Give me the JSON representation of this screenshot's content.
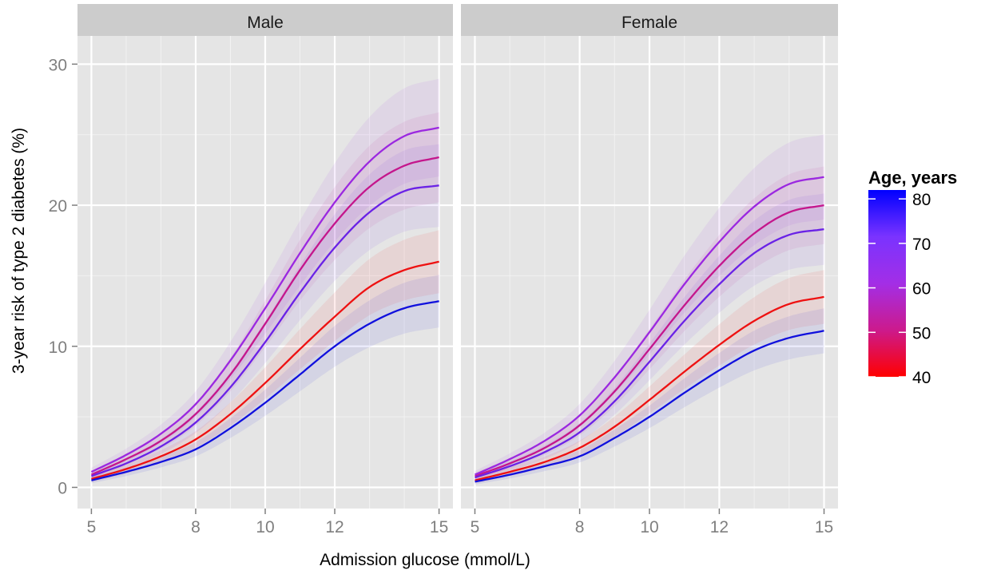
{
  "chart_data": {
    "type": "line",
    "xlabel": "Admission glucose (mmol/L)",
    "ylabel": "3-year risk of type 2 diabetes (%)",
    "xlim": [
      4.6,
      15.4
    ],
    "ylim": [
      -1.5,
      32
    ],
    "x_ticks": [
      5,
      8,
      10,
      12,
      15
    ],
    "x_ticks_labels": [
      "5",
      "8",
      "10",
      "12",
      "15"
    ],
    "x_minor_ticks": [
      6,
      7,
      9,
      11,
      13,
      14
    ],
    "y_ticks": [
      0,
      10,
      20,
      30
    ],
    "y_ticks_labels": [
      "0",
      "10",
      "20",
      "30"
    ],
    "y_minor_ticks": [
      5,
      15,
      25
    ],
    "grid": true,
    "x": [
      5,
      6,
      7,
      8,
      9,
      10,
      11,
      12,
      13,
      14,
      15
    ],
    "panels": [
      {
        "strip": "Male",
        "series": [
          {
            "age": 40,
            "color": "#ee1111",
            "values": [
              0.6,
              1.3,
              2.2,
              3.4,
              5.2,
              7.4,
              9.8,
              12.1,
              14.2,
              15.4,
              16.0
            ]
          },
          {
            "age": 50,
            "color": "#c4168c",
            "values": [
              0.9,
              2.0,
              3.3,
              5.2,
              8.0,
              11.6,
              15.4,
              18.7,
              21.3,
              22.8,
              23.4
            ]
          },
          {
            "age": 60,
            "color": "#9b28e0",
            "values": [
              1.1,
              2.3,
              3.8,
              5.9,
              9.0,
              12.7,
              16.6,
              20.2,
              23.1,
              24.9,
              25.5
            ]
          },
          {
            "age": 70,
            "color": "#6a22e6",
            "values": [
              0.8,
              1.7,
              2.9,
              4.6,
              7.1,
              10.3,
              13.8,
              17.0,
              19.5,
              21.0,
              21.4
            ]
          },
          {
            "age": 80,
            "color": "#1010dd",
            "values": [
              0.5,
              1.1,
              1.8,
              2.7,
              4.2,
              6.0,
              8.0,
              10.0,
              11.6,
              12.7,
              13.2
            ]
          }
        ]
      },
      {
        "strip": "Female",
        "series": [
          {
            "age": 40,
            "color": "#ee1111",
            "values": [
              0.5,
              1.1,
              1.8,
              2.8,
              4.3,
              6.2,
              8.2,
              10.1,
              11.8,
              13.0,
              13.5
            ]
          },
          {
            "age": 50,
            "color": "#c4168c",
            "values": [
              0.8,
              1.7,
              2.8,
              4.4,
              6.8,
              9.8,
              12.9,
              15.7,
              18.0,
              19.5,
              20.0
            ]
          },
          {
            "age": 60,
            "color": "#9b28e0",
            "values": [
              0.9,
              2.0,
              3.3,
              5.1,
              7.8,
              11.0,
              14.4,
              17.4,
              19.9,
              21.5,
              22.0
            ]
          },
          {
            "age": 70,
            "color": "#6a22e6",
            "values": [
              0.7,
              1.5,
              2.5,
              3.9,
              6.1,
              8.9,
              11.8,
              14.4,
              16.6,
              17.9,
              18.3
            ]
          },
          {
            "age": 80,
            "color": "#1010dd",
            "values": [
              0.4,
              0.9,
              1.5,
              2.2,
              3.5,
              5.0,
              6.7,
              8.3,
              9.7,
              10.6,
              11.1
            ]
          }
        ]
      }
    ],
    "legend": {
      "title": "Age, years",
      "placement": "right",
      "ticks": [
        80,
        70,
        60,
        50,
        40
      ],
      "tick_labels": [
        "80",
        "70",
        "60",
        "50",
        "40"
      ],
      "range": [
        40,
        82
      ],
      "colors": [
        "#0000ff",
        "#7a33ff",
        "#a32ee6",
        "#cc1a8c",
        "#ff0000"
      ]
    },
    "band_half_width_fraction": 0.13
  }
}
